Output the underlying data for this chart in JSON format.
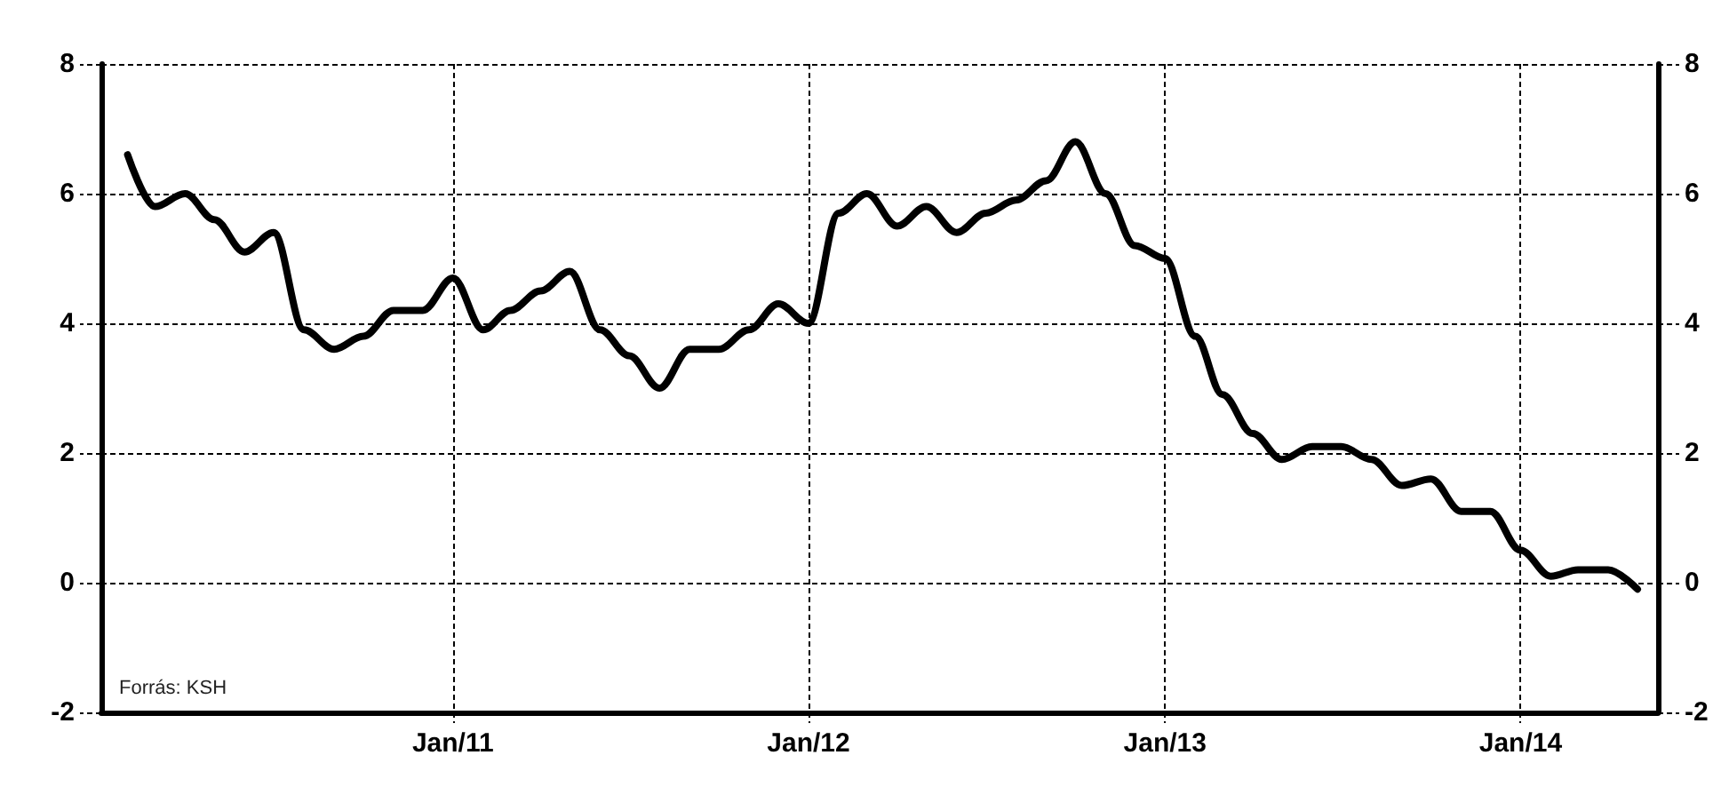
{
  "chart_data": {
    "type": "line",
    "annotations": [
      "Forrás: KSH"
    ],
    "x": [
      "2010-02",
      "2010-03",
      "2010-04",
      "2010-05",
      "2010-06",
      "2010-07",
      "2010-08",
      "2010-09",
      "2010-10",
      "2010-11",
      "2010-12",
      "2011-01",
      "2011-02",
      "2011-03",
      "2011-04",
      "2011-05",
      "2011-06",
      "2011-07",
      "2011-08",
      "2011-09",
      "2011-10",
      "2011-11",
      "2011-12",
      "2012-01",
      "2012-02",
      "2012-03",
      "2012-04",
      "2012-05",
      "2012-06",
      "2012-07",
      "2012-08",
      "2012-09",
      "2012-10",
      "2012-11",
      "2012-12",
      "2013-01",
      "2013-02",
      "2013-03",
      "2013-04",
      "2013-05",
      "2013-06",
      "2013-07",
      "2013-08",
      "2013-09",
      "2013-10",
      "2013-11",
      "2013-12",
      "2014-01",
      "2014-02",
      "2014-03",
      "2014-04",
      "2014-05"
    ],
    "values": [
      6.6,
      5.8,
      6.0,
      5.6,
      5.1,
      5.4,
      3.9,
      3.6,
      3.8,
      4.2,
      4.2,
      4.7,
      3.9,
      4.2,
      4.5,
      4.8,
      3.9,
      3.5,
      3.0,
      3.6,
      3.6,
      3.9,
      4.3,
      4.0,
      5.7,
      6.0,
      5.5,
      5.8,
      5.4,
      5.7,
      5.9,
      6.2,
      6.8,
      6.0,
      5.2,
      5.0,
      3.8,
      2.9,
      2.3,
      1.9,
      2.1,
      2.1,
      1.9,
      1.5,
      1.6,
      1.1,
      1.1,
      0.5,
      0.1,
      0.2,
      0.2,
      -0.1
    ],
    "color": "#000000",
    "xlim": [
      "2010-01-05",
      "2014-05-22"
    ],
    "xticks": [
      {
        "value": "2011-01",
        "label": "Jan/11"
      },
      {
        "value": "2012-01",
        "label": "Jan/12"
      },
      {
        "value": "2013-01",
        "label": "Jan/13"
      },
      {
        "value": "2014-01",
        "label": "Jan/14"
      }
    ],
    "ylim": [
      -2,
      8
    ],
    "yticks": [
      -2,
      0,
      2,
      4,
      6,
      8
    ],
    "y2lim": [
      -2,
      8
    ],
    "y2ticks": [
      -2,
      0,
      2,
      4,
      6,
      8
    ],
    "grid": true,
    "marker": "none",
    "line_style": "solid"
  }
}
